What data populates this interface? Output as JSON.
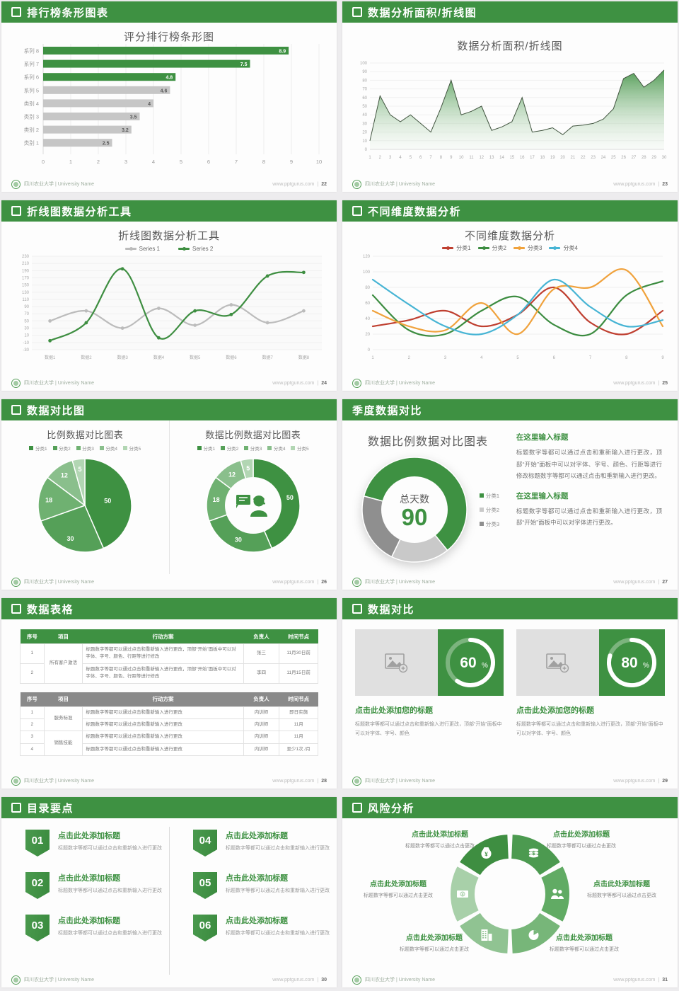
{
  "footer": {
    "org": "四川农业大学 | University Name",
    "site": "www.pptgurus.com",
    "divider": "|"
  },
  "slides": [
    {
      "title": "排行榜条形图表",
      "icon": true,
      "page": "22"
    },
    {
      "title": "数据分析面积/折线图",
      "icon": true,
      "page": "23"
    },
    {
      "title": "折线图数据分析工具",
      "icon": true,
      "page": "24"
    },
    {
      "title": "不同维度数据分析",
      "icon": true,
      "page": "25"
    },
    {
      "title": "数据对比图",
      "icon": true,
      "page": "26"
    },
    {
      "title": "季度数据对比",
      "icon": false,
      "page": "27",
      "blocks": [
        {
          "heading": "在这里输入标题",
          "body": "标题数字等都可以通过点击和重新输入进行更改，顶部“开始”面板中可以对字体、字号、颜色、行距等进行修改标题数字等都可以通过点击和重新输入进行更改。"
        },
        {
          "heading": "在这里输入标题",
          "body": "标题数字等都可以通过点击和重新输入进行更改，顶部“开始”面板中可以对字体进行更改。"
        }
      ]
    },
    {
      "title": "数据表格",
      "icon": true,
      "page": "28",
      "tables": [
        {
          "theme": "green",
          "headers": [
            "序号",
            "项目",
            "行动方案",
            "负责人",
            "时间节点"
          ],
          "rows": [
            {
              "no": "1",
              "proj": "所有客户激活",
              "span": 2,
              "action": "标题数字等都可以通过点击和重新输入进行更改，顶部“开始”面板中可以对字体、字号、颜色、行距等进行修改",
              "owner": "张三",
              "time": "11月30日前"
            },
            {
              "no": "2",
              "action": "标题数字等都可以通过点击和重新输入进行更改，顶部“开始”面板中可以对字体、字号、颜色、行距等进行修改",
              "owner": "李四",
              "time": "11月15日前"
            }
          ]
        },
        {
          "theme": "gray",
          "headers": [
            "序号",
            "项目",
            "行动方案",
            "负责人",
            "时间节点"
          ],
          "rows": [
            {
              "no": "1",
              "proj": "服务标准",
              "span": 2,
              "action": "标题数字等都可以通过点击和重新输入进行更改",
              "owner": "内训师",
              "time": "即日实施"
            },
            {
              "no": "2",
              "action": "标题数字等都可以通过点击和重新输入进行更改",
              "owner": "内训师",
              "time": "11月"
            },
            {
              "no": "3",
              "proj": "销售技能",
              "span": 2,
              "action": "标题数字等都可以通过点击和重新输入进行更改",
              "owner": "内训师",
              "time": "11月"
            },
            {
              "no": "4",
              "action": "标题数字等都可以通过点击和重新输入进行更改",
              "owner": "内训师",
              "time": "至少1次 /月"
            }
          ]
        }
      ]
    },
    {
      "title": "数据对比",
      "icon": true,
      "page": "29",
      "cards": [
        {
          "heading": "点击此处添加您的标题",
          "body": "标题数字等都可以通过点击和重新输入进行更改，顶部“开始”面板中可以对字体、字号、颜色",
          "percent": "60",
          "unit": "%"
        },
        {
          "heading": "点击此处添加您的标题",
          "body": "标题数字等都可以通过点击和重新输入进行更改，顶部“开始”面板中可以对字体、字号、颜色",
          "percent": "80",
          "unit": "%"
        }
      ]
    },
    {
      "title": "目录要点",
      "icon": true,
      "page": "30",
      "items": [
        {
          "num": "01",
          "heading": "点击此处添加标题",
          "body": "标题数字等都可以通过点击和重新输入进行更改"
        },
        {
          "num": "02",
          "heading": "点击此处添加标题",
          "body": "标题数字等都可以通过点击和重新输入进行更改"
        },
        {
          "num": "03",
          "heading": "点击此处添加标题",
          "body": "标题数字等都可以通过点击和重新输入进行更改"
        },
        {
          "num": "04",
          "heading": "点击此处添加标题",
          "body": "标题数字等都可以通过点击和重新输入进行更改"
        },
        {
          "num": "05",
          "heading": "点击此处添加标题",
          "body": "标题数字等都可以通过点击和重新输入进行更改"
        },
        {
          "num": "06",
          "heading": "点击此处添加标题",
          "body": "标题数字等都可以通过点击和重新输入进行更改"
        }
      ]
    },
    {
      "title": "风险分析",
      "icon": true,
      "page": "31",
      "items": [
        {
          "icon": "money-bag",
          "heading": "点击此处添加标题",
          "body": "标题数字等都可以通过点击更改"
        },
        {
          "icon": "coins",
          "heading": "点击此处添加标题",
          "body": "标题数字等都可以通过点击更改"
        },
        {
          "icon": "cash",
          "heading": "点击此处添加标题",
          "body": "标题数字等都可以通过点击更改"
        },
        {
          "icon": "people",
          "heading": "点击此处添加标题",
          "body": "标题数字等都可以通过点击更改"
        },
        {
          "icon": "building",
          "heading": "点击此处添加标题",
          "body": "标题数字等都可以通过点击更改"
        },
        {
          "icon": "pie",
          "heading": "点击此处添加标题",
          "body": "标题数字等都可以通过点击更改"
        }
      ]
    }
  ],
  "chart_data": [
    {
      "slot": "m-bar",
      "type": "bar",
      "orientation": "horizontal",
      "title": "评分排行榜条形图",
      "categories": [
        "系列 8",
        "系列 7",
        "系列 6",
        "系列 5",
        "类别 4",
        "类别 3",
        "类别 2",
        "类别 1"
      ],
      "values": [
        8.9,
        7.5,
        4.8,
        4.6,
        4,
        3.5,
        3.2,
        2.5
      ],
      "colors": [
        "#3e9142",
        "#3e9142",
        "#3e9142",
        "#c6c6c6",
        "#c6c6c6",
        "#c6c6c6",
        "#c6c6c6",
        "#c6c6c6"
      ],
      "label_colors": [
        "#ffffff",
        "#ffffff",
        "#ffffff",
        "#5a5a5a",
        "#5a5a5a",
        "#5a5a5a",
        "#5a5a5a",
        "#5a5a5a"
      ],
      "xlim": [
        0,
        10
      ],
      "xstep": 1,
      "grid": true
    },
    {
      "slot": "m-area",
      "type": "area",
      "title": "数据分析面积/折线图",
      "x": [
        1,
        2,
        3,
        4,
        5,
        6,
        7,
        8,
        9,
        10,
        11,
        12,
        13,
        14,
        15,
        16,
        17,
        18,
        19,
        20,
        21,
        22,
        23,
        24,
        25,
        26,
        27,
        28,
        29,
        30
      ],
      "values": [
        10,
        62,
        40,
        32,
        40,
        30,
        20,
        48,
        80,
        40,
        44,
        50,
        22,
        26,
        32,
        60,
        20,
        22,
        25,
        17,
        27,
        28,
        30,
        35,
        47,
        82,
        88,
        72,
        80,
        92
      ],
      "ylim": [
        0,
        100
      ],
      "ystep": 10,
      "grid": true,
      "stroke": "#41543f",
      "fill_top": "#4a974d",
      "fill_bottom": "#cfe6cf"
    },
    {
      "slot": "m-line2",
      "type": "line",
      "xmode": "slot",
      "markers": true,
      "title": "折线图数据分析工具",
      "categories": [
        "数据1",
        "数据2",
        "数据3",
        "数据4",
        "数据5",
        "数据6",
        "数据7",
        "数据8"
      ],
      "series": [
        {
          "name": "Series 1",
          "color": "#bcbcbc",
          "values": [
            50,
            78,
            30,
            85,
            38,
            95,
            45,
            78
          ]
        },
        {
          "name": "Series 2",
          "color": "#3e8e41",
          "values": [
            -5,
            45,
            195,
            3,
            78,
            68,
            175,
            185
          ]
        }
      ],
      "ylim": [
        -30,
        230
      ],
      "ystep": 20,
      "grid": true,
      "legend_position": "top"
    },
    {
      "slot": "m-line4",
      "type": "line",
      "xmode": "edge",
      "markers": false,
      "title": "不同维度数据分析",
      "categories": [
        "1",
        "2",
        "3",
        "4",
        "5",
        "6",
        "7",
        "8",
        "9"
      ],
      "series": [
        {
          "name": "分类1",
          "color": "#bf3f30",
          "values": [
            30,
            38,
            50,
            30,
            45,
            80,
            35,
            20,
            50
          ]
        },
        {
          "name": "分类2",
          "color": "#3c8c40",
          "values": [
            70,
            25,
            20,
            50,
            68,
            32,
            20,
            70,
            88
          ]
        },
        {
          "name": "分类3",
          "color": "#f0a23c",
          "values": [
            50,
            30,
            25,
            60,
            20,
            78,
            80,
            102,
            30
          ]
        },
        {
          "name": "分类4",
          "color": "#46b4d4",
          "values": [
            90,
            58,
            30,
            20,
            45,
            90,
            55,
            30,
            38
          ]
        }
      ],
      "ylim": [
        0,
        120
      ],
      "ystep": 20,
      "grid": true,
      "legend_position": "top"
    },
    {
      "slot": "m-pie",
      "type": "pie",
      "title": "比例数据对比图表",
      "labels": [
        "分类1",
        "分类2",
        "分类3",
        "分类4",
        "分类5"
      ],
      "values": [
        50,
        30,
        18,
        12,
        5
      ],
      "colors": [
        "#3e9142",
        "#55a058",
        "#6fb171",
        "#8abf8c",
        "#b2d6b3"
      ],
      "legend_position": "top"
    },
    {
      "slot": "m-donut1",
      "type": "donut",
      "title": "数据比例数据对比图表",
      "labels": [
        "分类1",
        "分类2",
        "分类3",
        "分类4",
        "分类5"
      ],
      "values": [
        50,
        30,
        18,
        12,
        5
      ],
      "colors": [
        "#3e9142",
        "#55a058",
        "#6fb171",
        "#8abf8c",
        "#b2d6b3"
      ],
      "center_icon": "support-agent",
      "legend_position": "top"
    },
    {
      "slot": "m-donut2",
      "type": "donut",
      "title": "数据比例数据对比图表",
      "labels": [
        "分类1",
        "分类2",
        "分类3"
      ],
      "values": [
        60,
        18,
        22
      ],
      "colors": [
        "#3e9142",
        "#c9c9c9",
        "#8f8f8f"
      ],
      "start_angle": -75,
      "show_labels": false,
      "center_label": "总天数",
      "center_value": "90",
      "legend_position": "right"
    },
    {
      "slot": "m-ring60",
      "type": "ring",
      "value": 60
    },
    {
      "slot": "m-ring80",
      "type": "ring",
      "value": 80
    }
  ]
}
